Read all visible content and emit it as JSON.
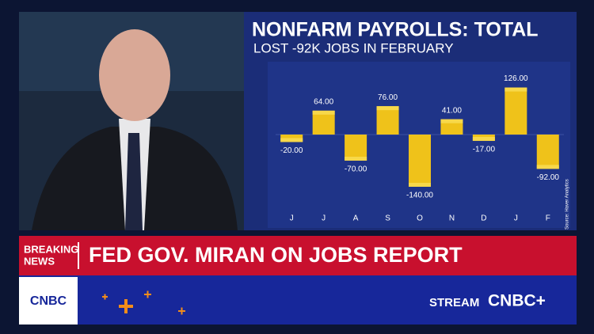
{
  "chart_data": {
    "type": "bar",
    "title": "NONFARM PAYROLLS: TOTAL",
    "subtitle": "LOST -92K JOBS IN FEBRUARY",
    "categories": [
      "J",
      "J",
      "A",
      "S",
      "O",
      "N",
      "D",
      "J",
      "F"
    ],
    "values": [
      -20,
      64,
      -70,
      76,
      -140,
      41,
      -17,
      126,
      -92
    ],
    "value_labels": [
      "-20.00",
      "64.00",
      "-70.00",
      "76.00",
      "-140.00",
      "41.00",
      "-17.00",
      "126.00",
      "-92.00"
    ],
    "color": "#efc21a",
    "source": "Source: Haver Analytics"
  },
  "banner": {
    "label": [
      "BREAKING",
      "NEWS"
    ],
    "headline": "FED GOV. MIRAN ON JOBS REPORT"
  },
  "footer": {
    "logo": "CNBC",
    "stream": "STREAM",
    "brand": "CNBC+"
  }
}
